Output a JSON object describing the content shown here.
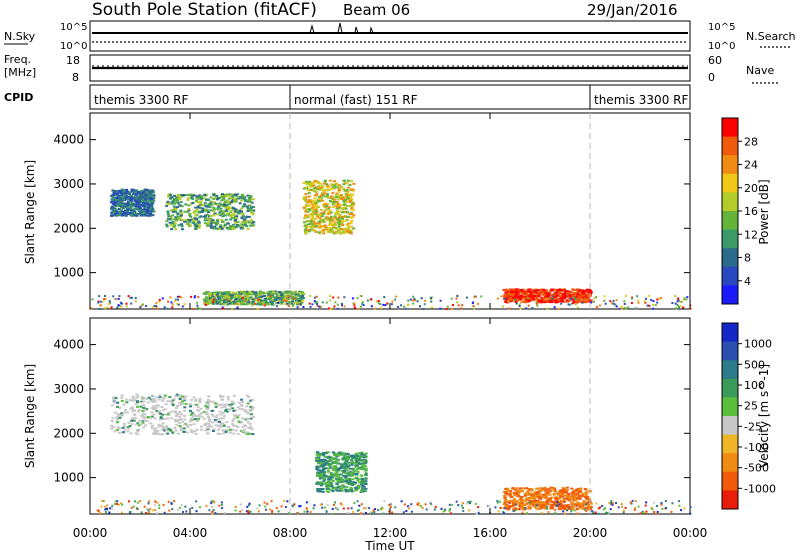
{
  "header": {
    "title": "South Pole Station (fitACF)",
    "beam": "Beam 06",
    "date": "29/Jan/2016"
  },
  "status_panels": {
    "nsky_label": "N.Sky",
    "nsearch_label": "N.Search",
    "freq_label_1": "Freq.",
    "freq_label_2": "[MHz]",
    "nave_label": "Nave",
    "cpid_label": "CPID",
    "nsky_ticks_left": [
      "10^5",
      "10^0"
    ],
    "nsky_ticks_right": [
      "10^5",
      "10^0"
    ],
    "freq_ticks": [
      "18",
      "8"
    ],
    "nave_ticks": [
      "60",
      "0"
    ]
  },
  "cpid_segments": [
    {
      "label": "themis 3300 RF",
      "start_hour": 0
    },
    {
      "label": "normal (fast) 151 RF",
      "start_hour": 8
    },
    {
      "label": "themis 3300 RF",
      "start_hour": 20
    }
  ],
  "chart_data": [
    {
      "type": "heatmap",
      "name": "power_panel",
      "ylabel": "Slant Range [km]",
      "y_ticks": [
        1000,
        2000,
        3000,
        4000
      ],
      "ylim": [
        180,
        4600
      ],
      "xlim_hours": [
        0,
        24
      ],
      "colorbar": {
        "label": "Power [dB]",
        "ticks": [
          "4",
          "8",
          "12",
          "16",
          "20",
          "24",
          "28"
        ],
        "colors": [
          "#1a1aff",
          "#2848c0",
          "#2c6a8c",
          "#3c9a6a",
          "#64b43c",
          "#b4cc2a",
          "#f0c818",
          "#f08c14",
          "#f05a0c",
          "#ff0000"
        ]
      },
      "features": [
        {
          "hours": [
            0.8,
            2.5
          ],
          "range_km": [
            2300,
            2900
          ],
          "level": "low-mid"
        },
        {
          "hours": [
            3,
            6.5
          ],
          "range_km": [
            2000,
            2800
          ],
          "level": "mid"
        },
        {
          "hours": [
            8.5,
            10.5
          ],
          "range_km": [
            1900,
            3100
          ],
          "level": "high"
        },
        {
          "hours": [
            16.5,
            20
          ],
          "range_km": [
            350,
            650
          ],
          "level": "very high"
        },
        {
          "hours": [
            4.5,
            8.5
          ],
          "range_km": [
            300,
            600
          ],
          "level": "mid"
        }
      ]
    },
    {
      "type": "heatmap",
      "name": "velocity_panel",
      "ylabel": "Slant Range [km]",
      "y_ticks": [
        1000,
        2000,
        3000,
        4000
      ],
      "ylim": [
        180,
        4600
      ],
      "xlim_hours": [
        0,
        24
      ],
      "colorbar": {
        "label": "Velocity [m s^-1]",
        "ticks": [
          "1000",
          "500",
          "100",
          "25",
          "-25",
          "-100",
          "-500",
          "-1000"
        ],
        "colors": [
          "#1428c8",
          "#2a50b0",
          "#2c7a8a",
          "#3a9a5a",
          "#5abe3c",
          "#c8c8c8",
          "#f0b428",
          "#f08c14",
          "#f05a0a",
          "#e81e0a"
        ]
      },
      "features": [
        {
          "hours": [
            0.8,
            6.5
          ],
          "range_km": [
            2000,
            2900
          ],
          "velocity": "near zero"
        },
        {
          "hours": [
            16.5,
            20
          ],
          "range_km": [
            300,
            800
          ],
          "velocity": "-100 to -500"
        },
        {
          "hours": [
            9,
            11
          ],
          "range_km": [
            700,
            1600
          ],
          "velocity": "100 to 500"
        }
      ]
    }
  ],
  "x_axis": {
    "label": "Time UT",
    "ticks": [
      "00:00",
      "04:00",
      "08:00",
      "12:00",
      "16:00",
      "20:00",
      "00:00"
    ]
  }
}
